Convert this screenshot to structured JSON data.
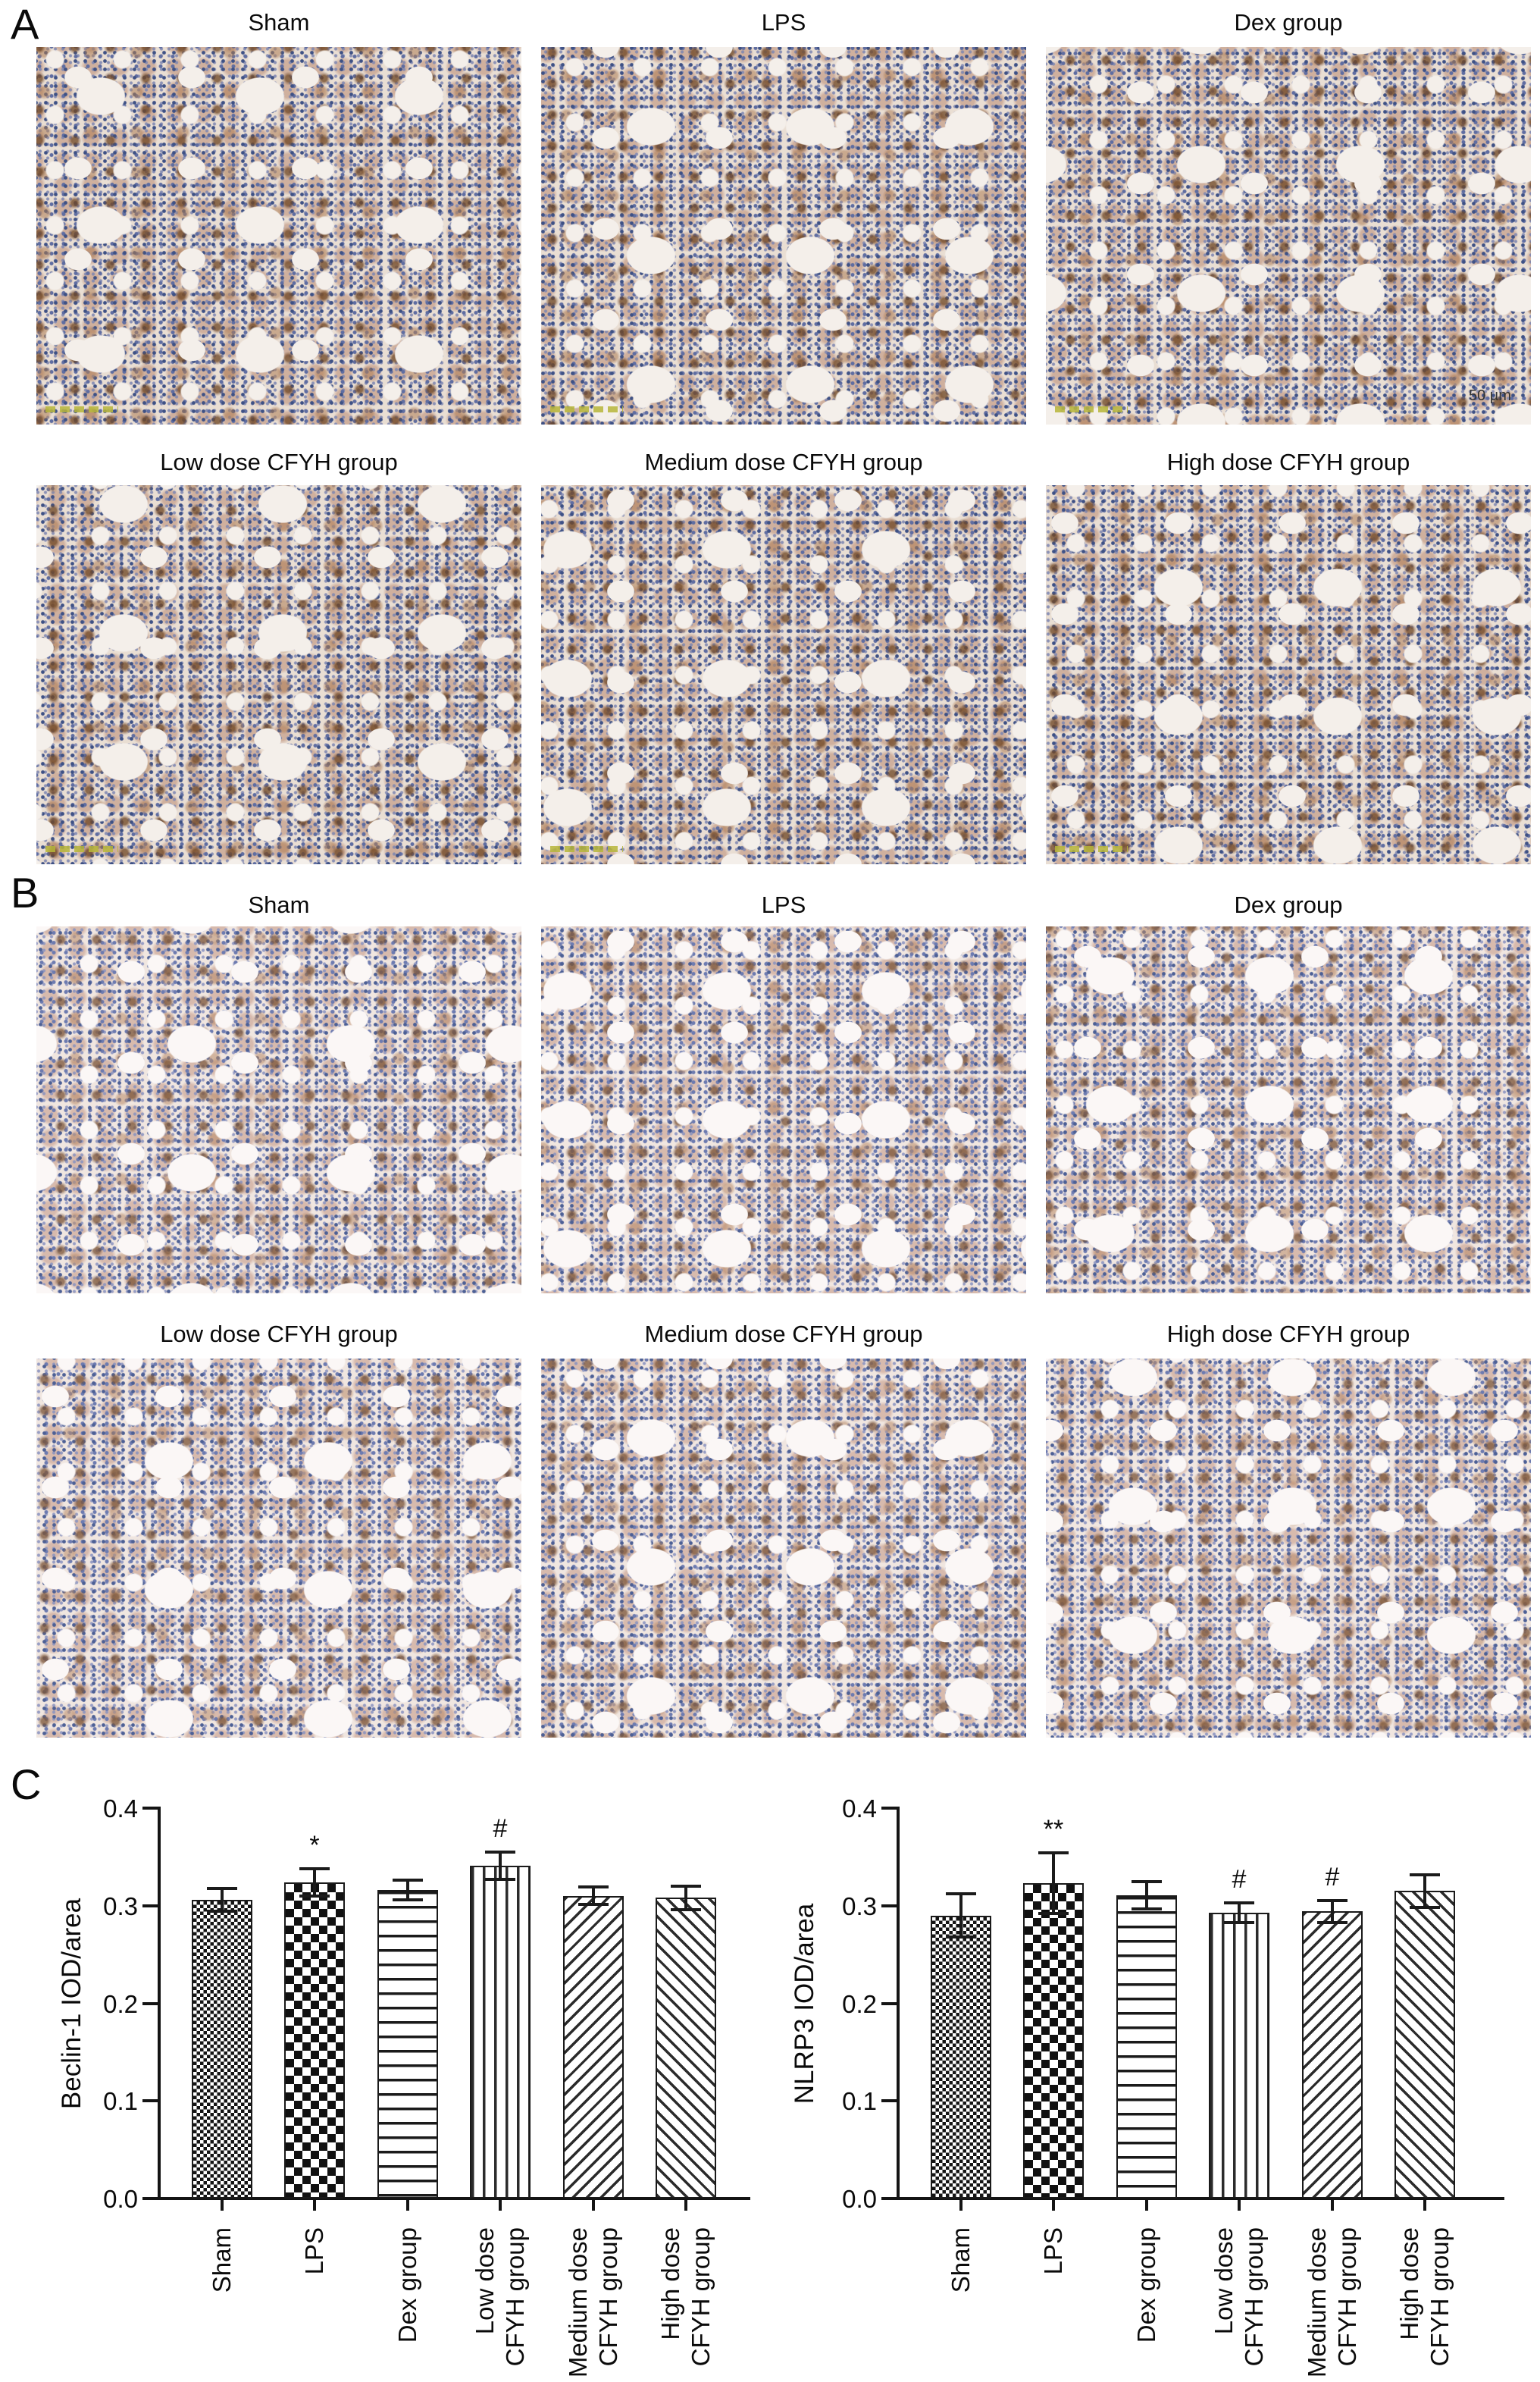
{
  "panel_a": {
    "label": "A",
    "row1_titles": [
      "Sham",
      "LPS",
      "Dex group"
    ],
    "row2_titles": [
      "Low dose CFYH group",
      "Medium dose CFYH group",
      "High dose CFYH group"
    ],
    "scale_bar_label": "50 µm"
  },
  "panel_b": {
    "label": "B",
    "row1_titles": [
      "Sham",
      "LPS",
      "Dex group"
    ],
    "row2_titles": [
      "Low dose CFYH group",
      "Medium dose CFYH group",
      "High dose CFYH group"
    ]
  },
  "panel_c": {
    "label": "C"
  },
  "chart_data": [
    {
      "type": "bar",
      "title": "",
      "ylabel": "Beclin-1 IOD/area",
      "categories": [
        "Sham",
        "LPS",
        "Dex group",
        "Low dose CFYH group",
        "Medium dose CFYH group",
        "High dose CFYH group"
      ],
      "values": [
        0.306,
        0.324,
        0.316,
        0.341,
        0.31,
        0.308
      ],
      "errors": [
        0.012,
        0.014,
        0.01,
        0.014,
        0.009,
        0.012
      ],
      "annotations": [
        "",
        "*",
        "",
        "#",
        "",
        ""
      ],
      "ylim": [
        0,
        0.4
      ],
      "yticks": [
        "0.0",
        "0.1",
        "0.2",
        "0.3",
        "0.4"
      ],
      "grid": false,
      "legend": "none",
      "bar_patterns": [
        "checker-fine",
        "checker-coarse",
        "stripes-horizontal",
        "stripes-vertical",
        "hatch-forward",
        "hatch-back"
      ]
    },
    {
      "type": "bar",
      "title": "",
      "ylabel": "NLRP3 IOD/area",
      "categories": [
        "Sham",
        "LPS",
        "Dex group",
        "Low dose CFYH group",
        "Medium dose CFYH group",
        "High dose CFYH group"
      ],
      "values": [
        0.29,
        0.323,
        0.311,
        0.293,
        0.294,
        0.315
      ],
      "errors": [
        0.022,
        0.031,
        0.014,
        0.01,
        0.011,
        0.017
      ],
      "annotations": [
        "",
        "**",
        "",
        "#",
        "#",
        ""
      ],
      "ylim": [
        0,
        0.4
      ],
      "yticks": [
        "0.0",
        "0.1",
        "0.2",
        "0.3",
        "0.4"
      ],
      "grid": false,
      "legend": "none",
      "bar_patterns": [
        "checker-fine",
        "checker-coarse",
        "stripes-horizontal",
        "stripes-vertical",
        "hatch-forward",
        "hatch-back"
      ]
    }
  ]
}
